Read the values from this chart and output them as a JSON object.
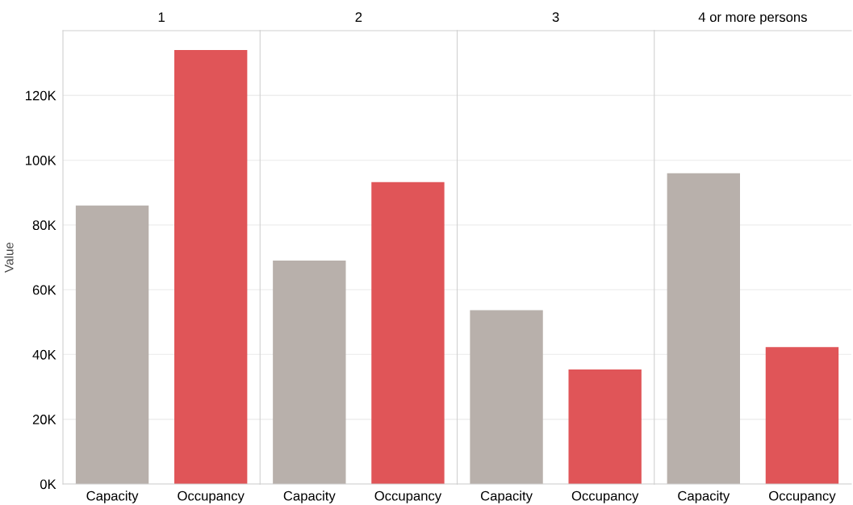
{
  "chart_data": [
    {
      "type": "bar",
      "title": "1",
      "ylabel": "Value",
      "categories": [
        "Capacity",
        "Occupancy"
      ],
      "values": [
        86000,
        134000
      ],
      "colors": [
        "#b8b0ab",
        "#e05558"
      ],
      "ylim": [
        0,
        140000
      ],
      "yticks": [
        {
          "value": 0,
          "label": "0K"
        },
        {
          "value": 20000,
          "label": "20K"
        },
        {
          "value": 40000,
          "label": "40K"
        },
        {
          "value": 60000,
          "label": "60K"
        },
        {
          "value": 80000,
          "label": "80K"
        },
        {
          "value": 100000,
          "label": "100K"
        },
        {
          "value": 120000,
          "label": "120K"
        }
      ],
      "grid": "y"
    },
    {
      "type": "bar",
      "title": "2",
      "categories": [
        "Capacity",
        "Occupancy"
      ],
      "values": [
        69000,
        93200
      ],
      "colors": [
        "#b8b0ab",
        "#e05558"
      ],
      "ylim": [
        0,
        140000
      ],
      "grid": "y",
      "tick_labels": "x"
    },
    {
      "type": "bar",
      "title": "3",
      "categories": [
        "Capacity",
        "Occupancy"
      ],
      "values": [
        53700,
        35400
      ],
      "colors": [
        "#b8b0ab",
        "#e05558"
      ],
      "ylim": [
        0,
        140000
      ],
      "grid": "y",
      "tick_labels": "x"
    },
    {
      "type": "bar",
      "title": "4 or more persons",
      "categories": [
        "Capacity",
        "Occupancy"
      ],
      "values": [
        96000,
        42300
      ],
      "colors": [
        "#b8b0ab",
        "#e05558"
      ],
      "ylim": [
        0,
        140000
      ],
      "grid": "y",
      "tick_labels": "x"
    }
  ]
}
